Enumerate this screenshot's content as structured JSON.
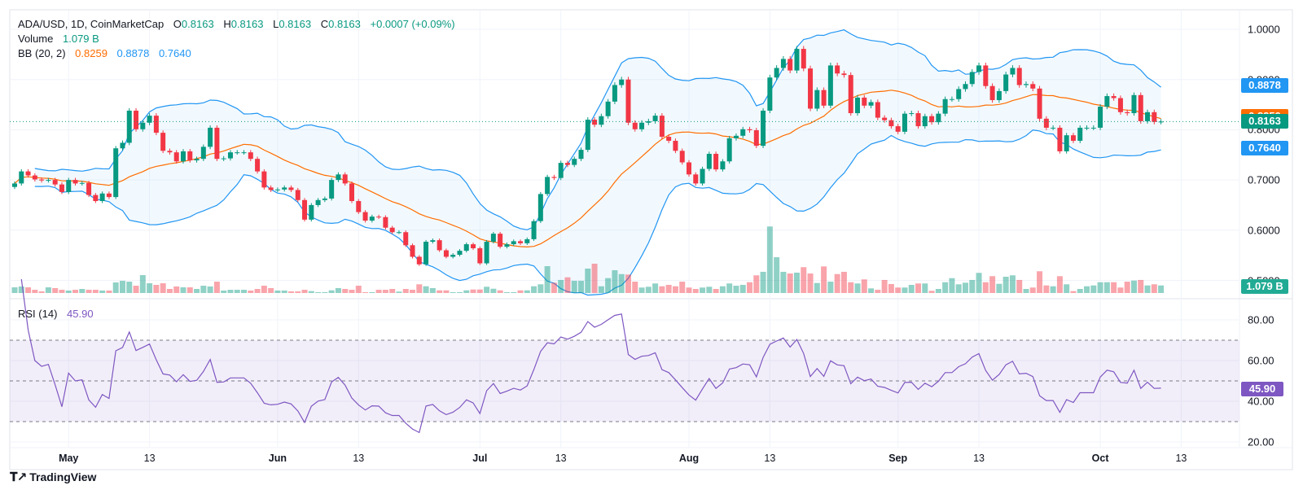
{
  "legend": {
    "symbol": "ADA/USD, 1D, CoinMarketCap",
    "o_label": "O",
    "o": "0.8163",
    "h_label": "H",
    "h": "0.8163",
    "l_label": "L",
    "l": "0.8163",
    "c_label": "C",
    "c": "0.8163",
    "change": "+0.0007 (+0.09%)",
    "volume_label": "Volume",
    "volume": "1.079 B",
    "bb_label": "BB (20, 2)",
    "bb_basis": "0.8259",
    "bb_upper": "0.8878",
    "bb_lower": "0.7640",
    "rsi_label": "RSI (14)",
    "rsi": "45.90"
  },
  "price_axis": {
    "ticks": [
      {
        "label": "1.0000",
        "value": 1.0
      },
      {
        "label": "0.9000",
        "value": 0.9
      },
      {
        "label": "0.8000",
        "value": 0.8
      },
      {
        "label": "0.7000",
        "value": 0.7
      },
      {
        "label": "0.6000",
        "value": 0.6
      },
      {
        "label": "0.5000",
        "value": 0.5
      }
    ],
    "badges": [
      {
        "name": "bb-upper",
        "label": "0.8878",
        "value": 0.8878,
        "color": "#2196f3"
      },
      {
        "name": "bb-basis",
        "label": "0.8259",
        "value": 0.8259,
        "color": "#ff6d00"
      },
      {
        "name": "last-price",
        "label": "0.8163",
        "value": 0.8163,
        "color": "#089981"
      },
      {
        "name": "bb-lower",
        "label": "0.7640",
        "value": 0.764,
        "color": "#2196f3"
      }
    ],
    "volume_badge": {
      "label": "1.079 B",
      "value": 1.079,
      "color": "#22ab94"
    }
  },
  "rsi_axis": {
    "ticks": [
      {
        "label": "80.00",
        "value": 80
      },
      {
        "label": "60.00",
        "value": 60
      },
      {
        "label": "40.00",
        "value": 40
      },
      {
        "label": "20.00",
        "value": 20
      }
    ],
    "levels": [
      70,
      50,
      30
    ],
    "badge": {
      "label": "45.90",
      "value": 45.9,
      "color": "#7e57c2"
    }
  },
  "time_axis": [
    {
      "label": "May",
      "index": 8,
      "month": true
    },
    {
      "label": "13",
      "index": 20,
      "month": false
    },
    {
      "label": "Jun",
      "index": 39,
      "month": true
    },
    {
      "label": "13",
      "index": 51,
      "month": false
    },
    {
      "label": "Jul",
      "index": 69,
      "month": true
    },
    {
      "label": "13",
      "index": 81,
      "month": false
    },
    {
      "label": "Aug",
      "index": 100,
      "month": true
    },
    {
      "label": "13",
      "index": 112,
      "month": false
    },
    {
      "label": "Sep",
      "index": 131,
      "month": true
    },
    {
      "label": "13",
      "index": 143,
      "month": false
    },
    {
      "label": "Oct",
      "index": 161,
      "month": true
    },
    {
      "label": "13",
      "index": 173,
      "month": false
    }
  ],
  "branding": "TradingView",
  "colors": {
    "up": "#089981",
    "down": "#f23645",
    "bb_band": "#2196f3",
    "bb_basis": "#ff6d00",
    "rsi": "#7e57c2"
  },
  "chart_data": {
    "type": "candlestick",
    "title": "ADA/USD, 1D, CoinMarketCap",
    "ylim": [
      0.5,
      1.0
    ],
    "rsi_ylim": [
      20,
      85
    ],
    "indicators": [
      "BB (20, 2)",
      "RSI (14)",
      "Volume"
    ],
    "closes": [
      0.693,
      0.717,
      0.709,
      0.701,
      0.699,
      0.7,
      0.691,
      0.676,
      0.7,
      0.693,
      0.694,
      0.67,
      0.658,
      0.673,
      0.666,
      0.763,
      0.774,
      0.838,
      0.801,
      0.814,
      0.828,
      0.794,
      0.758,
      0.755,
      0.737,
      0.757,
      0.739,
      0.742,
      0.766,
      0.804,
      0.742,
      0.743,
      0.755,
      0.755,
      0.755,
      0.742,
      0.717,
      0.685,
      0.68,
      0.681,
      0.685,
      0.68,
      0.66,
      0.621,
      0.65,
      0.66,
      0.663,
      0.7,
      0.711,
      0.693,
      0.658,
      0.636,
      0.619,
      0.627,
      0.626,
      0.605,
      0.596,
      0.596,
      0.57,
      0.547,
      0.532,
      0.577,
      0.58,
      0.56,
      0.547,
      0.551,
      0.559,
      0.572,
      0.564,
      0.534,
      0.577,
      0.593,
      0.567,
      0.572,
      0.578,
      0.574,
      0.582,
      0.618,
      0.672,
      0.706,
      0.704,
      0.734,
      0.73,
      0.742,
      0.76,
      0.82,
      0.81,
      0.827,
      0.856,
      0.889,
      0.9,
      0.814,
      0.801,
      0.814,
      0.817,
      0.828,
      0.786,
      0.778,
      0.758,
      0.735,
      0.711,
      0.693,
      0.722,
      0.752,
      0.721,
      0.737,
      0.783,
      0.788,
      0.801,
      0.799,
      0.768,
      0.838,
      0.904,
      0.923,
      0.941,
      0.918,
      0.961,
      0.922,
      0.842,
      0.879,
      0.848,
      0.928,
      0.912,
      0.909,
      0.833,
      0.864,
      0.848,
      0.855,
      0.824,
      0.819,
      0.807,
      0.796,
      0.832,
      0.833,
      0.807,
      0.827,
      0.815,
      0.832,
      0.861,
      0.861,
      0.881,
      0.891,
      0.915,
      0.928,
      0.887,
      0.859,
      0.877,
      0.91,
      0.923,
      0.889,
      0.891,
      0.882,
      0.822,
      0.804,
      0.804,
      0.757,
      0.789,
      0.778,
      0.804,
      0.804,
      0.804,
      0.846,
      0.867,
      0.863,
      0.835,
      0.833,
      0.869,
      0.817,
      0.835,
      0.8156,
      0.8163
    ],
    "volumes_b": [
      0.81,
      0.93,
      0.81,
      0.46,
      0.23,
      0.81,
      0.7,
      0.46,
      0.35,
      0.46,
      0.58,
      0.46,
      0.46,
      0.35,
      0.35,
      1.51,
      1.74,
      1.62,
      1.04,
      2.55,
      1.39,
      1.16,
      1.39,
      0.58,
      0.93,
      0.81,
      0.81,
      0.58,
      1.04,
      0.93,
      1.62,
      0.35,
      0.46,
      0.46,
      0.46,
      0.35,
      0.58,
      1.04,
      0.7,
      0.35,
      0.35,
      0.23,
      0.23,
      0.46,
      0.27,
      0.12,
      0.12,
      0.38,
      0.7,
      0.58,
      0.46,
      1.04,
      0.12,
      0.12,
      0.46,
      0.46,
      0.58,
      0.2,
      0.58,
      0.46,
      1.24,
      0.96,
      0.7,
      0.38,
      0.38,
      0.12,
      0.12,
      0.38,
      0.5,
      0.5,
      0.89,
      0.61,
      0.38,
      0.12,
      0.12,
      0.38,
      0.38,
      0.96,
      1.24,
      3.83,
      1.47,
      1.86,
      2.24,
      1.74,
      1.74,
      3.48,
      4.18,
      0.96,
      2.12,
      3.25,
      2.7,
      2.63,
      1.62,
      0.78,
      0.89,
      1.36,
      0.96,
      1.16,
      0.96,
      1.62,
      0.78,
      0.58,
      0.78,
      0.89,
      0.58,
      0.96,
      1.36,
      1.04,
      1.16,
      1.54,
      2.52,
      3.02,
      9.48,
      5.1,
      3.02,
      2.78,
      2.9,
      3.68,
      2.78,
      1.43,
      3.79,
      1.62,
      2.7,
      3.02,
      1.54,
      1.36,
      1.94,
      0.66,
      0.46,
      1.86,
      1.28,
      0.78,
      0.78,
      1.16,
      1.36,
      1.36,
      0.31,
      0.58,
      1.54,
      2.12,
      1.24,
      1.47,
      1.86,
      2.87,
      1.54,
      2.4,
      1.31,
      2.32,
      2.52,
      1.86,
      0.58,
      0.78,
      3.1,
      1.08,
      0.96,
      2.4,
      1.24,
      0.27,
      0.58,
      0.96,
      1.08,
      1.54,
      1.54,
      1.54,
      0.78,
      1.62,
      1.77,
      1.86,
      1.08,
      1.24,
      1.079
    ]
  }
}
